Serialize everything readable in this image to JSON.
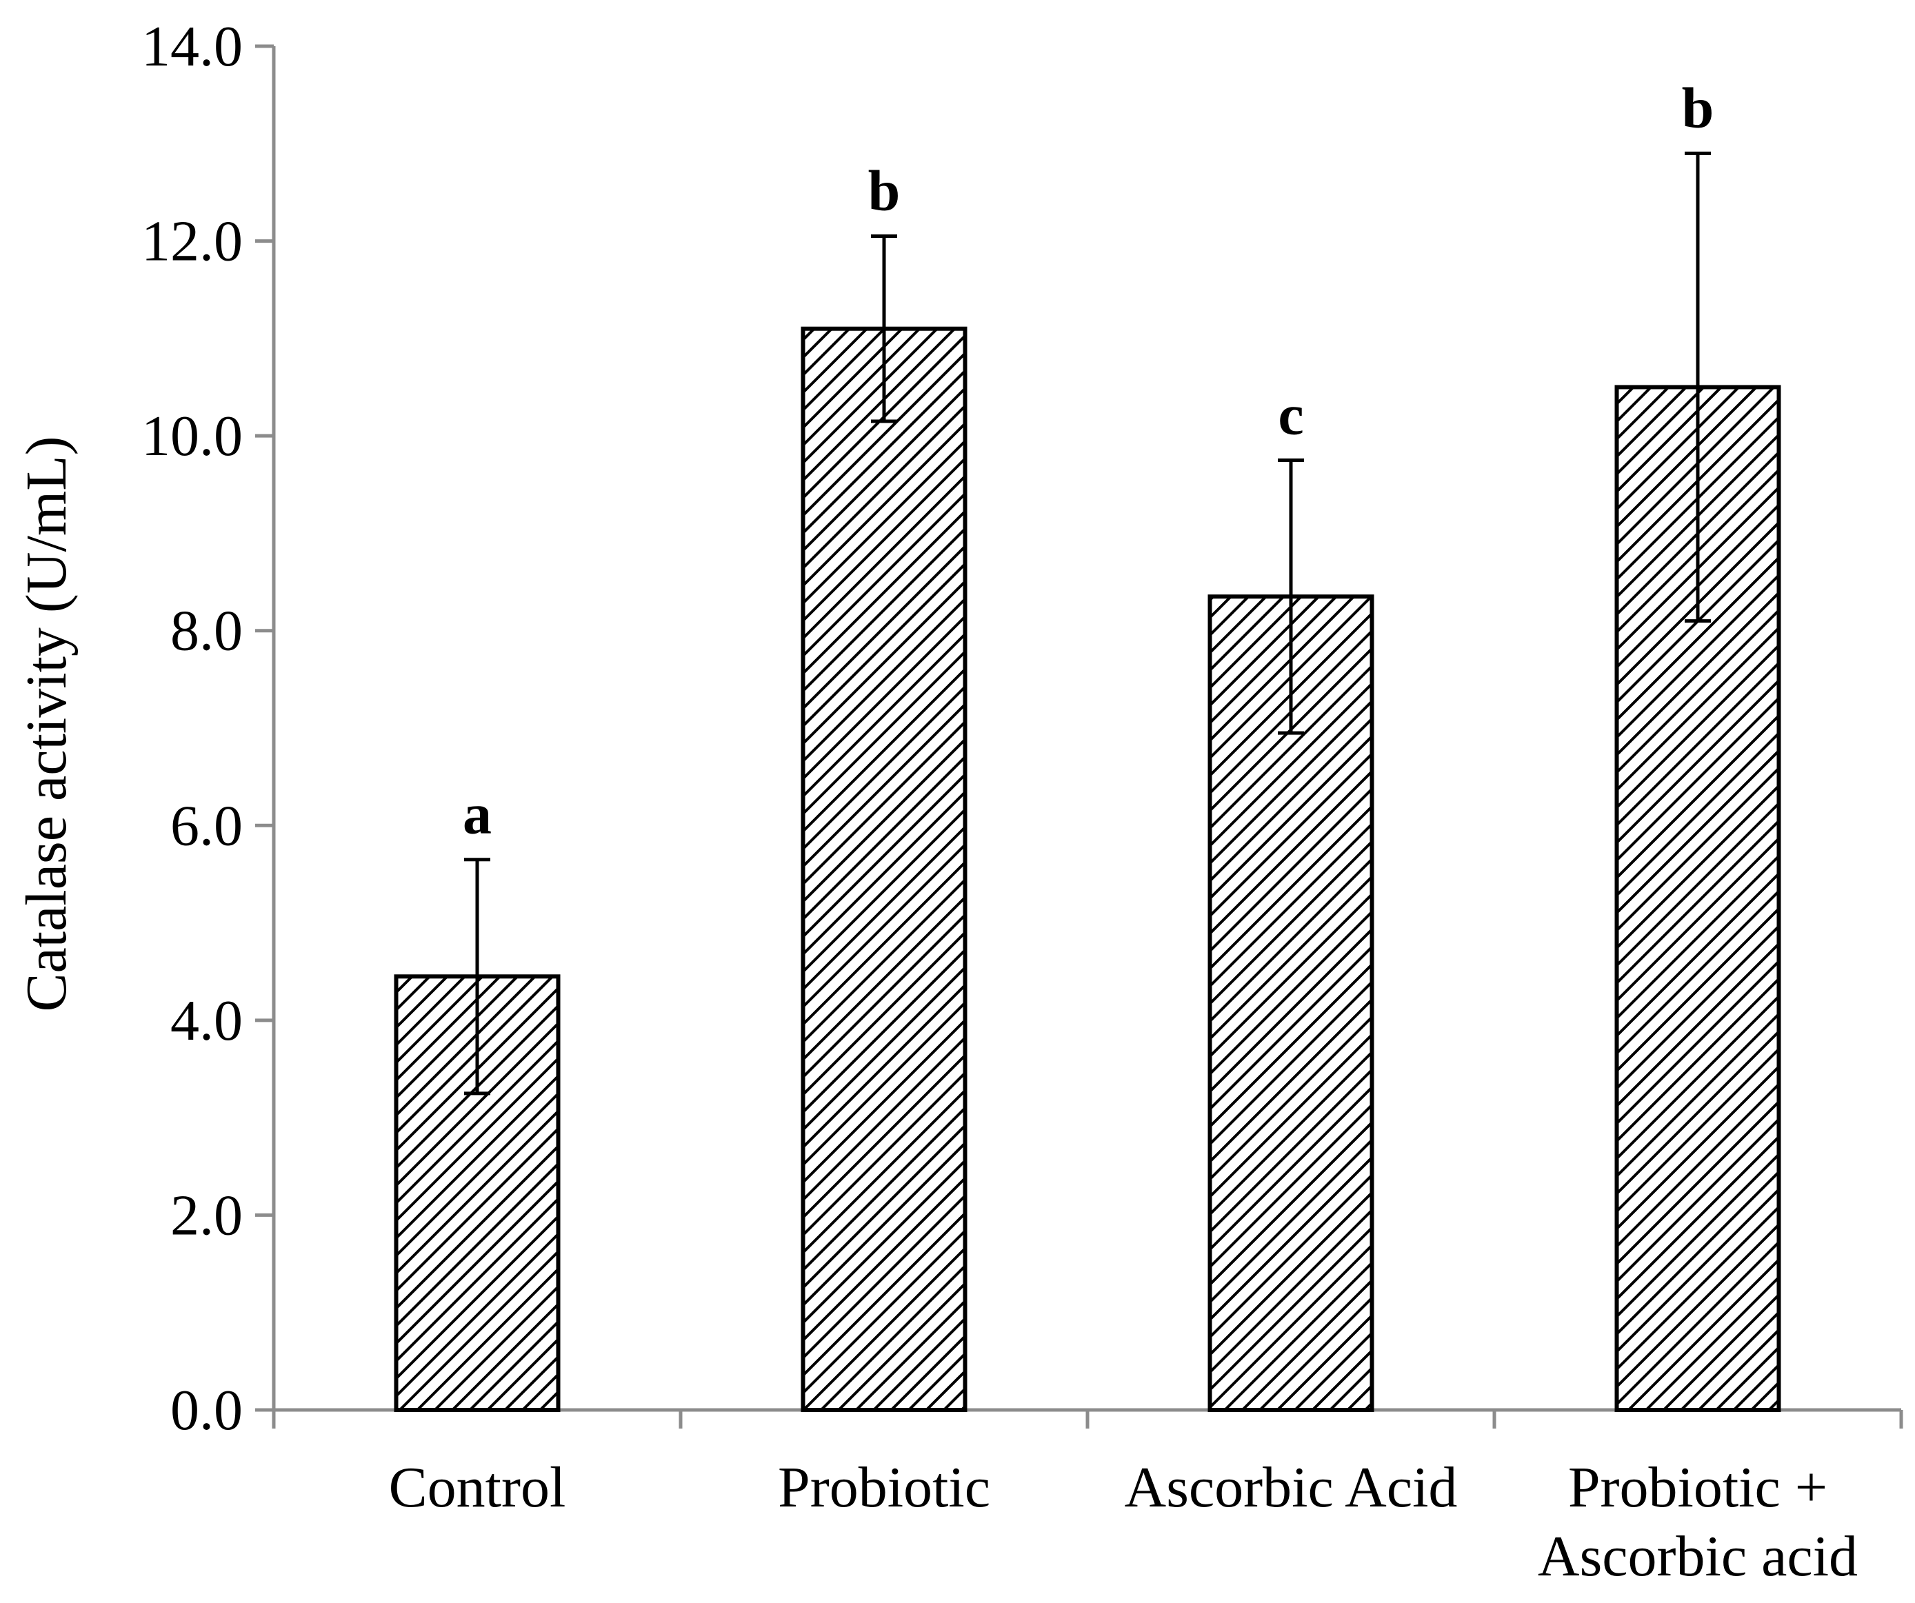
{
  "chart_data": {
    "type": "bar",
    "title": "",
    "xlabel": "",
    "ylabel": "Catalase activity (U/mL)",
    "ylim": [
      0,
      14
    ],
    "yticks": [
      "0.0",
      "2.0",
      "4.0",
      "6.0",
      "8.0",
      "10.0",
      "12.0",
      "14.0"
    ],
    "categories": [
      {
        "lines": [
          "Control"
        ]
      },
      {
        "lines": [
          "Probiotic"
        ]
      },
      {
        "lines": [
          "Ascorbic Acid"
        ]
      },
      {
        "lines": [
          "Probiotic +",
          "Ascorbic acid"
        ]
      }
    ],
    "values": [
      4.45,
      11.1,
      8.35,
      10.5
    ],
    "error_upper": [
      5.65,
      12.05,
      9.75,
      12.9
    ],
    "error_lower": [
      3.25,
      10.15,
      6.95,
      8.1
    ],
    "significance_letters": [
      "a",
      "b",
      "c",
      "b"
    ],
    "fill_pattern": "diagonal-hatch",
    "bar_color": "#000000",
    "axis_color": "#8c8c8c"
  }
}
